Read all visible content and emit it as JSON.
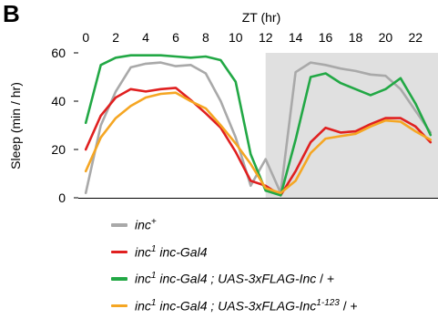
{
  "chart_data": {
    "type": "line",
    "panel_letter": "B",
    "title": "ZT (hr)",
    "ylabel": "Sleep (min / hr)",
    "xlim": [
      -0.5,
      23.5
    ],
    "ylim": [
      0,
      60
    ],
    "xticks": [
      0,
      2,
      4,
      6,
      8,
      10,
      12,
      14,
      16,
      18,
      20,
      22
    ],
    "yticks": [
      0,
      20,
      40,
      60
    ],
    "dark_phase": [
      12,
      23.5
    ],
    "x": [
      0,
      1,
      2,
      3,
      4,
      5,
      6,
      7,
      8,
      9,
      10,
      11,
      12,
      13,
      14,
      15,
      16,
      17,
      18,
      19,
      20,
      21,
      22,
      23
    ],
    "series": [
      {
        "name": "inc+",
        "color": "#a9a9a9",
        "values": [
          2,
          30,
          44,
          54,
          55.5,
          56,
          54.5,
          55,
          51.5,
          40,
          25,
          5,
          16,
          2,
          52,
          56,
          55,
          53.5,
          52.5,
          51,
          50.5,
          45,
          36,
          27
        ]
      },
      {
        "name": "inc1 inc-Gal4",
        "color": "#e02020",
        "values": [
          20,
          34,
          41.5,
          45,
          44,
          45,
          45.5,
          40.5,
          35,
          29,
          19,
          7,
          5,
          1,
          11,
          23,
          29,
          27,
          27.5,
          30.5,
          33,
          33,
          29.5,
          23
        ]
      },
      {
        "name": "inc1 inc-Gal4 ; UAS-3xFLAG-Inc / +",
        "color": "#22a845",
        "values": [
          31,
          55,
          58,
          59,
          59,
          59,
          58.5,
          58,
          58.5,
          57,
          48,
          18,
          3,
          1,
          24,
          50,
          51.5,
          47.5,
          45,
          42.5,
          45,
          49.5,
          39,
          26
        ]
      },
      {
        "name": "inc1 inc-Gal4 ; UAS-3xFLAG-Inc1-123 / +",
        "color": "#f5a623",
        "values": [
          11,
          25,
          33,
          38,
          41.5,
          43,
          43.5,
          40,
          37,
          30,
          22.5,
          14,
          4,
          2,
          7,
          18.5,
          24.5,
          25.5,
          26.5,
          29.5,
          32,
          31.5,
          27.5,
          24
        ]
      }
    ]
  },
  "legend": [
    {
      "color": "#a9a9a9",
      "base": "inc",
      "sup": "+",
      "mid": "",
      "sup2": "",
      "tail": ""
    },
    {
      "color": "#e02020",
      "base": "inc",
      "sup": "1",
      "mid": " inc-Gal4",
      "sup2": "",
      "tail": ""
    },
    {
      "color": "#22a845",
      "base": "inc",
      "sup": "1",
      "mid": " inc-Gal4 ; UAS-3xFLAG-Inc",
      "sup2": "",
      "tail": " / +"
    },
    {
      "color": "#f5a623",
      "base": "inc",
      "sup": "1",
      "mid": " inc-Gal4 ; UAS-3xFLAG-Inc",
      "sup2": "1-123",
      "tail": " / +"
    }
  ]
}
